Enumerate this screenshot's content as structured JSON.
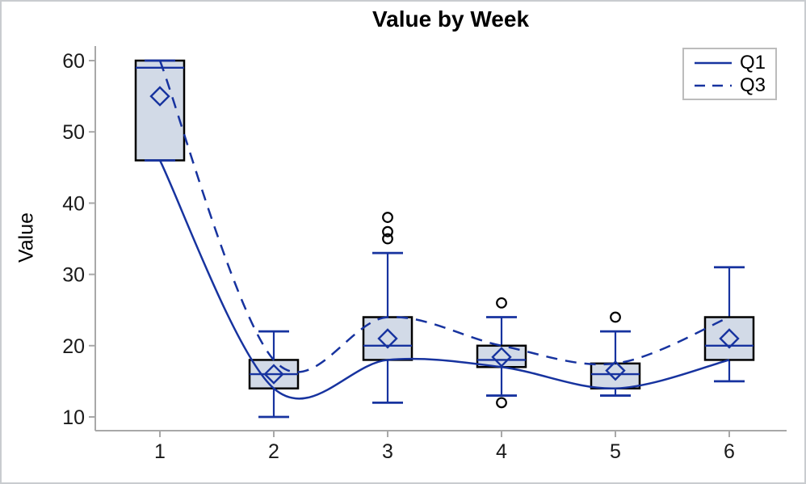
{
  "figure": {
    "title": "Value by Week",
    "y_axis": {
      "label": "Value"
    },
    "legend": {
      "items": [
        {
          "label": "Q1",
          "style": "solid"
        },
        {
          "label": "Q3",
          "style": "dashed"
        }
      ]
    }
  },
  "chart_data": {
    "type": "box",
    "title": "Value by Week",
    "xlabel": "",
    "ylabel": "Value",
    "categories": [
      1,
      2,
      3,
      4,
      5,
      6
    ],
    "y_ticks": [
      10,
      20,
      30,
      40,
      50,
      60
    ],
    "ylim": [
      10,
      60
    ],
    "grid": false,
    "legend_position": "top-right",
    "boxes": [
      {
        "week": 1,
        "min": 46,
        "q1": 46,
        "median": 59,
        "q3": 60,
        "max": 60,
        "mean": 55,
        "outliers": []
      },
      {
        "week": 2,
        "min": 10,
        "q1": 14,
        "median": 16,
        "q3": 18,
        "max": 22,
        "mean": 16,
        "outliers": []
      },
      {
        "week": 3,
        "min": 12,
        "q1": 18,
        "median": 20,
        "q3": 24,
        "max": 33,
        "mean": 21,
        "outliers": [
          35,
          36,
          38
        ]
      },
      {
        "week": 4,
        "min": 13,
        "q1": 17,
        "median": 18,
        "q3": 20,
        "max": 24,
        "mean": 18.4,
        "outliers": [
          12,
          26
        ]
      },
      {
        "week": 5,
        "min": 13,
        "q1": 14,
        "median": 16,
        "q3": 17.5,
        "max": 22,
        "mean": 16.5,
        "outliers": [
          24
        ]
      },
      {
        "week": 6,
        "min": 15,
        "q1": 18,
        "median": 20,
        "q3": 24,
        "max": 31,
        "mean": 21,
        "outliers": []
      }
    ],
    "series": [
      {
        "name": "Q1",
        "style": "solid",
        "values": [
          46,
          14,
          18,
          17,
          14,
          18
        ]
      },
      {
        "name": "Q3",
        "style": "dashed",
        "values": [
          60,
          18,
          24,
          20,
          17.5,
          24
        ]
      }
    ],
    "colors": {
      "line": "#17339f",
      "box_fill": "#d2dae7",
      "box_border": "#000000",
      "outlier": "#000000",
      "axis": "#a8a8a8",
      "tick_label": "#1a1a1a",
      "legend_border": "#bcbcbc"
    }
  }
}
